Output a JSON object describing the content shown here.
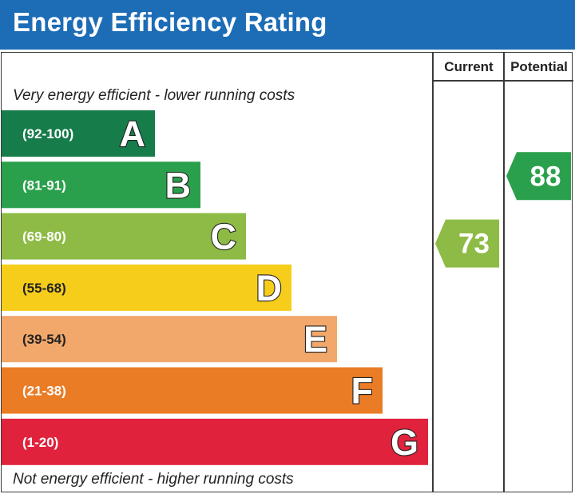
{
  "header": {
    "title": "Energy Efficiency Rating"
  },
  "columns": {
    "current": "Current",
    "potential": "Potential"
  },
  "captions": {
    "top": "Very energy efficient - lower running costs",
    "bottom": "Not energy efficient - higher running costs"
  },
  "chart_data": {
    "type": "bar",
    "title": "Energy Efficiency Rating",
    "bands": [
      {
        "letter": "A",
        "range": "(92-100)",
        "color": "#157c4a"
      },
      {
        "letter": "B",
        "range": "(81-91)",
        "color": "#2aa04c"
      },
      {
        "letter": "C",
        "range": "(69-80)",
        "color": "#8dbb45"
      },
      {
        "letter": "D",
        "range": "(55-68)",
        "color": "#f6cd1b"
      },
      {
        "letter": "E",
        "range": "(39-54)",
        "color": "#f2a76b"
      },
      {
        "letter": "F",
        "range": "(21-38)",
        "color": "#ea7c26"
      },
      {
        "letter": "G",
        "range": "(1-20)",
        "color": "#e0223c"
      }
    ],
    "ratings": {
      "current": {
        "value": 73,
        "band": "C",
        "color": "#8dbb45"
      },
      "potential": {
        "value": 88,
        "band": "B",
        "color": "#2aa04c"
      }
    }
  }
}
